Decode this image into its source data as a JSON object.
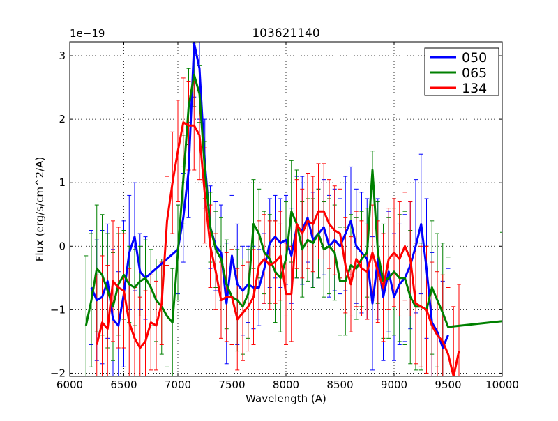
{
  "chart_data": {
    "type": "line",
    "title": "103621140",
    "xlabel": "Wavelength (A)",
    "ylabel": "Flux (erg/s/cm^2/A)",
    "y_multiplier": "1e−19",
    "xlim": [
      6000,
      10000
    ],
    "ylim": [
      -2.05,
      3.22
    ],
    "grid": true,
    "legend_position": "top-right",
    "x_ticks": [
      6000,
      6500,
      7000,
      7500,
      8000,
      8500,
      9000,
      9500,
      10000
    ],
    "x_tick_labels": [
      "6000",
      "6500",
      "7000",
      "7500",
      "8000",
      "8500",
      "9000",
      "9500",
      "10000"
    ],
    "y_ticks": [
      -2,
      -1,
      0,
      1,
      2,
      3
    ],
    "y_tick_labels": [
      "−2",
      "−1",
      "0",
      "1",
      "2",
      "3"
    ],
    "series": [
      {
        "name": "050",
        "color": "#0000ff",
        "x": [
          6200,
          6250,
          6300,
          6350,
          6400,
          6450,
          6500,
          6550,
          6600,
          6650,
          6700,
          7000,
          7050,
          7100,
          7150,
          7200,
          7250,
          7300,
          7350,
          7400,
          7450,
          7500,
          7550,
          7600,
          7650,
          7700,
          7750,
          7800,
          7850,
          7900,
          7950,
          8000,
          8050,
          8100,
          8150,
          8200,
          8250,
          8300,
          8350,
          8400,
          8450,
          8500,
          8550,
          8600,
          8650,
          8700,
          8750,
          8800,
          8850,
          8900,
          8950,
          9000,
          9050,
          9100,
          9150,
          9200,
          9250,
          9300,
          9350,
          9400,
          9450,
          9500
        ],
        "y": [
          -0.65,
          -0.85,
          -0.8,
          -0.55,
          -1.15,
          -1.25,
          -0.75,
          -0.1,
          0.15,
          -0.4,
          -0.5,
          -0.05,
          0.45,
          1.2,
          3.2,
          2.8,
          1.3,
          0.3,
          0.0,
          -0.1,
          -0.9,
          -0.15,
          -0.6,
          -0.7,
          -0.6,
          -0.65,
          -0.65,
          -0.35,
          0.05,
          0.15,
          0.05,
          0.1,
          -0.15,
          0.3,
          0.25,
          0.45,
          0.1,
          0.2,
          0.3,
          0.0,
          0.1,
          0.0,
          0.2,
          0.4,
          0.0,
          -0.1,
          -0.2,
          -0.9,
          -0.2,
          -0.8,
          -0.4,
          -0.8,
          -0.6,
          -0.5,
          -0.3,
          0.0,
          0.35,
          -0.35,
          -1.2,
          -1.35,
          -1.6,
          -1.4
        ],
        "errors": [
          0.9,
          0.95,
          1.05,
          0.9,
          1.1,
          0.85,
          1.15,
          0.9,
          0.85,
          0.6,
          0.65,
          0.7,
          0.7,
          0.75,
          0.85,
          0.8,
          0.7,
          0.65,
          0.7,
          0.75,
          0.95,
          0.95,
          0.95,
          0.7,
          0.6,
          0.65,
          0.6,
          0.55,
          0.7,
          0.65,
          0.7,
          0.7,
          0.75,
          0.8,
          0.85,
          0.7,
          0.75,
          0.7,
          0.75,
          0.8,
          0.8,
          0.75,
          0.9,
          0.85,
          0.9,
          0.95,
          0.95,
          1.05,
          0.95,
          1.0,
          0.95,
          1.0,
          0.95,
          1.0,
          1.0,
          1.05,
          1.1,
          1.1,
          1.1,
          1.15,
          1.05,
          1.05
        ]
      },
      {
        "name": "065",
        "color": "#008000",
        "x": [
          6150,
          6200,
          6250,
          6300,
          6350,
          6400,
          6450,
          6500,
          6550,
          6600,
          6650,
          6700,
          6750,
          6800,
          6850,
          6900,
          6950,
          7000,
          7050,
          7100,
          7150,
          7200,
          7250,
          7300,
          7350,
          7400,
          7450,
          7500,
          7550,
          7600,
          7650,
          7700,
          7750,
          7800,
          7850,
          7900,
          7950,
          8000,
          8050,
          8100,
          8150,
          8200,
          8250,
          8300,
          8350,
          8400,
          8450,
          8500,
          8550,
          8600,
          8650,
          8700,
          8750,
          8800,
          8850,
          8900,
          8950,
          9000,
          9050,
          9100,
          9150,
          9200,
          9250,
          9300,
          9350,
          9400,
          9450,
          9500,
          10000
        ],
        "y": [
          -1.25,
          -0.85,
          -0.35,
          -0.45,
          -0.7,
          -0.95,
          -0.6,
          -0.45,
          -0.6,
          -0.65,
          -0.55,
          -0.5,
          -0.65,
          -0.85,
          -0.95,
          -1.1,
          -1.2,
          -0.1,
          1.05,
          2.2,
          2.7,
          2.4,
          1.2,
          0.3,
          -0.05,
          -0.2,
          -0.6,
          -0.8,
          -0.85,
          -0.95,
          -0.75,
          0.35,
          0.2,
          -0.1,
          -0.2,
          -0.4,
          -0.5,
          -0.2,
          0.55,
          0.35,
          -0.05,
          0.1,
          0.05,
          0.2,
          -0.05,
          0.0,
          -0.1,
          -0.55,
          -0.55,
          -0.3,
          -0.35,
          -0.2,
          -0.1,
          1.2,
          -0.1,
          -0.55,
          -0.5,
          -0.4,
          -0.5,
          -0.5,
          -0.8,
          -0.95,
          -0.95,
          -1.0,
          -0.65,
          -0.85,
          -1.05,
          -1.27,
          -1.18
        ],
        "errors": [
          1.1,
          1.05,
          1.0,
          0.95,
          0.9,
          0.85,
          0.8,
          0.7,
          0.6,
          0.6,
          0.55,
          0.6,
          0.6,
          0.65,
          0.75,
          0.8,
          0.85,
          0.75,
          0.7,
          0.6,
          0.5,
          0.45,
          0.45,
          0.55,
          0.6,
          0.65,
          0.7,
          0.75,
          0.8,
          0.75,
          0.7,
          0.7,
          0.7,
          0.65,
          0.7,
          0.8,
          0.85,
          0.9,
          0.8,
          0.85,
          0.75,
          0.65,
          0.7,
          0.7,
          0.75,
          0.75,
          0.75,
          0.85,
          0.85,
          0.8,
          0.8,
          0.75,
          0.7,
          0.3,
          0.8,
          0.9,
          0.95,
          1.0,
          1.0,
          1.05,
          1.05,
          1.0,
          1.0,
          1.0,
          1.05,
          1.05,
          1.1,
          1.1,
          1.4
        ]
      },
      {
        "name": "134",
        "color": "#ff0000",
        "x": [
          6250,
          6300,
          6350,
          6400,
          6450,
          6500,
          6550,
          6600,
          6650,
          6700,
          6750,
          6800,
          6850,
          6900,
          6950,
          7000,
          7050,
          7100,
          7150,
          7200,
          7250,
          7300,
          7350,
          7400,
          7450,
          7500,
          7550,
          7600,
          7650,
          7700,
          7750,
          7800,
          7850,
          7900,
          7950,
          8000,
          8050,
          8100,
          8150,
          8200,
          8250,
          8300,
          8350,
          8400,
          8450,
          8500,
          8550,
          8600,
          8650,
          8700,
          8750,
          8800,
          8850,
          8900,
          8950,
          9000,
          9050,
          9100,
          9150,
          9200,
          9250,
          9300,
          9350,
          9400,
          9450,
          9500,
          9550,
          9600
        ],
        "y": [
          -1.55,
          -1.2,
          -1.3,
          -0.55,
          -0.65,
          -0.7,
          -1.2,
          -1.45,
          -1.6,
          -1.5,
          -1.2,
          -1.25,
          -0.9,
          0.4,
          1.0,
          1.5,
          1.95,
          1.9,
          1.9,
          1.75,
          0.8,
          0.0,
          -0.4,
          -0.85,
          -0.8,
          -0.8,
          -1.15,
          -1.05,
          -0.95,
          -0.8,
          -0.3,
          -0.2,
          -0.3,
          -0.25,
          -0.15,
          -0.75,
          -0.75,
          0.35,
          0.2,
          0.4,
          0.35,
          0.55,
          0.55,
          0.35,
          0.25,
          0.2,
          -0.3,
          -0.6,
          -0.2,
          -0.35,
          -0.4,
          -0.1,
          -0.4,
          -0.65,
          -0.2,
          -0.1,
          -0.2,
          0.0,
          -0.2,
          -0.9,
          -0.95,
          -1.0,
          -1.25,
          -1.4,
          -1.5,
          -1.7,
          -2.05,
          -1.65
        ],
        "errors": [
          1.1,
          1.05,
          1.0,
          0.95,
          0.95,
          0.9,
          0.85,
          0.8,
          0.8,
          0.8,
          0.75,
          0.7,
          0.65,
          0.7,
          0.8,
          0.8,
          0.7,
          0.7,
          0.7,
          0.7,
          0.75,
          0.65,
          0.6,
          0.6,
          0.7,
          0.75,
          0.8,
          0.75,
          0.7,
          0.75,
          0.7,
          0.7,
          0.7,
          0.65,
          0.7,
          0.8,
          0.75,
          0.7,
          0.7,
          0.75,
          0.75,
          0.75,
          0.75,
          0.7,
          0.7,
          0.7,
          0.75,
          0.75,
          0.75,
          0.75,
          0.75,
          0.75,
          0.8,
          0.85,
          0.8,
          0.85,
          0.9,
          0.85,
          0.9,
          0.95,
          0.95,
          1.0,
          1.0,
          1.0,
          1.05,
          1.05,
          1.1,
          1.05
        ]
      }
    ]
  }
}
